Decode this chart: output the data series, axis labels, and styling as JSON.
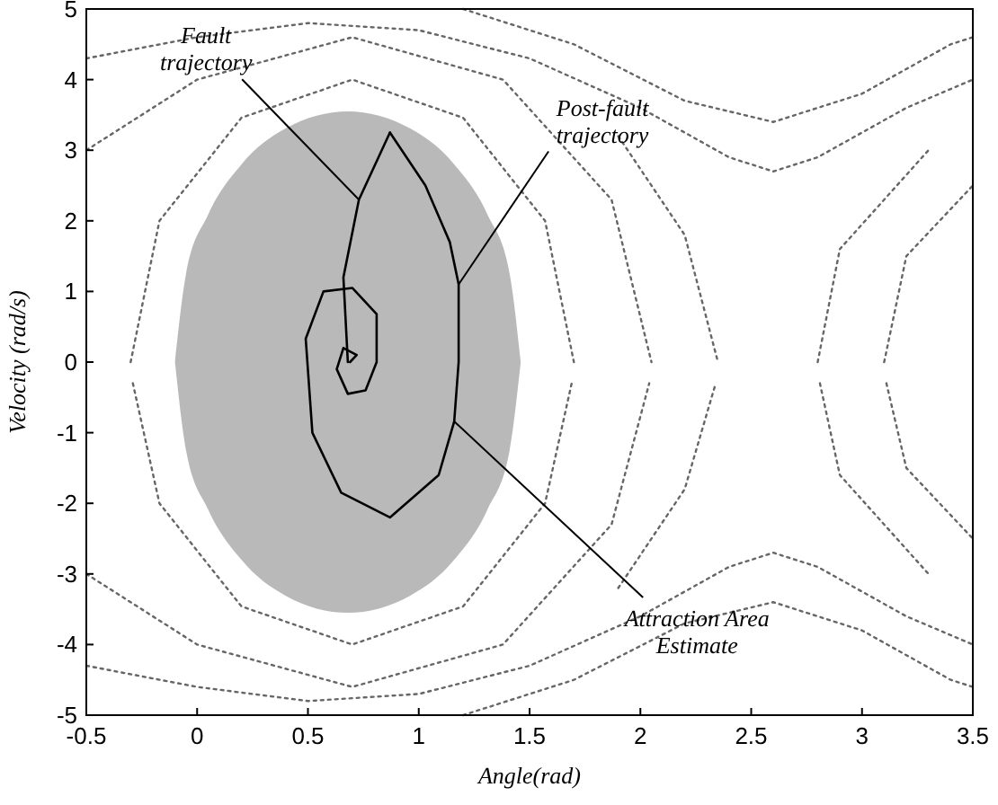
{
  "chart_data": {
    "type": "line",
    "xlabel": "Angle(rad)",
    "ylabel": "Velocity (rad/s)",
    "xlim": [
      -0.5,
      3.5
    ],
    "xticks": [
      -0.5,
      0,
      0.5,
      1,
      1.5,
      2,
      2.5,
      3,
      3.5
    ],
    "ylim": [
      -5,
      5
    ],
    "yticks": [
      -5,
      -4,
      -3,
      -2,
      -1,
      0,
      1,
      2,
      3,
      4,
      5
    ],
    "grid": false,
    "legend": false,
    "series": [
      {
        "type": "area",
        "color": "#a8a8a8",
        "x": [
          -0.1,
          -0.05,
          0.05,
          0.2,
          0.4,
          0.68,
          0.96,
          1.16,
          1.31,
          1.41,
          1.46
        ],
        "values": [
          0,
          1.25,
          2.09,
          2.8,
          3.31,
          3.55,
          3.31,
          2.8,
          2.09,
          1.25,
          0
        ]
      },
      {
        "type": "area",
        "color": "#a8a8a8",
        "x": [
          -0.1,
          -0.05,
          0.05,
          0.2,
          0.4,
          0.68,
          0.96,
          1.16,
          1.31,
          1.41,
          1.46
        ],
        "values": [
          0,
          -1.25,
          -2.09,
          -2.8,
          -3.31,
          -3.55,
          -3.31,
          -2.8,
          -2.09,
          -1.25,
          0
        ]
      },
      {
        "type": "line",
        "color": "#666666",
        "line_style": "dotted",
        "x": [
          -0.3,
          -0.17,
          0.2,
          0.7,
          1.2,
          1.57,
          1.7
        ],
        "values": [
          0,
          2,
          3.46,
          4,
          3.46,
          2,
          0
        ]
      },
      {
        "type": "line",
        "color": "#666666",
        "line_style": "dotted",
        "x": [
          -0.29,
          -0.17,
          0.2,
          0.7,
          1.2,
          1.57,
          1.69
        ],
        "values": [
          -0.3,
          -2,
          -3.46,
          -4,
          -3.46,
          -2,
          -0.3
        ]
      },
      {
        "type": "line",
        "color": "#666666",
        "line_style": "dotted",
        "x": [
          -0.5,
          0,
          0.7,
          1.38,
          1.87,
          2.05
        ],
        "values": [
          3,
          4,
          4.6,
          4,
          2.3,
          0
        ]
      },
      {
        "type": "line",
        "color": "#666666",
        "line_style": "dotted",
        "x": [
          -0.5,
          0,
          0.7,
          1.38,
          1.87,
          2.04
        ],
        "values": [
          -3,
          -4,
          -4.6,
          -4,
          -2.3,
          -0.3
        ]
      },
      {
        "type": "line",
        "color": "#666666",
        "line_style": "dotted",
        "x": [
          -0.5,
          0,
          0.5,
          1,
          1.5,
          2,
          2.4,
          2.6,
          2.8,
          3.2,
          3.5
        ],
        "values": [
          4.3,
          4.6,
          4.8,
          4.7,
          4.3,
          3.6,
          2.9,
          2.7,
          2.9,
          3.6,
          4
        ]
      },
      {
        "type": "line",
        "color": "#666666",
        "line_style": "dotted",
        "x": [
          1.2,
          1.7,
          2.2,
          2.6,
          3,
          3.4,
          3.5
        ],
        "values": [
          5,
          4.5,
          3.7,
          3.4,
          3.8,
          4.5,
          4.6
        ]
      },
      {
        "type": "line",
        "color": "#666666",
        "line_style": "dotted",
        "x": [
          -0.5,
          0,
          0.5,
          1,
          1.5,
          2,
          2.4,
          2.6,
          2.8,
          3.2,
          3.5
        ],
        "values": [
          -4.3,
          -4.6,
          -4.8,
          -4.7,
          -4.3,
          -3.6,
          -2.9,
          -2.7,
          -2.9,
          -3.6,
          -4
        ]
      },
      {
        "type": "line",
        "color": "#666666",
        "line_style": "dotted",
        "x": [
          1.2,
          1.7,
          2.2,
          2.6,
          3,
          3.4,
          3.5
        ],
        "values": [
          -5,
          -4.5,
          -3.7,
          -3.4,
          -3.8,
          -4.5,
          -4.6
        ]
      },
      {
        "type": "line",
        "color": "#666666",
        "line_style": "dotted",
        "x": [
          1.9,
          2.2,
          2.35
        ],
        "values": [
          3.2,
          1.8,
          0
        ]
      },
      {
        "type": "line",
        "color": "#666666",
        "line_style": "dotted",
        "x": [
          1.9,
          2.2,
          2.34
        ],
        "values": [
          -3.2,
          -1.8,
          -0.3
        ]
      },
      {
        "type": "line",
        "color": "#666666",
        "line_style": "dotted",
        "x": [
          2.8,
          2.9,
          3.3
        ],
        "values": [
          0,
          1.6,
          3
        ]
      },
      {
        "type": "line",
        "color": "#666666",
        "line_style": "dotted",
        "x": [
          2.81,
          2.9,
          3.3
        ],
        "values": [
          -0.3,
          -1.6,
          -3
        ]
      },
      {
        "type": "line",
        "color": "#666666",
        "line_style": "dotted",
        "x": [
          3.1,
          3.2,
          3.5
        ],
        "values": [
          0,
          1.5,
          2.5
        ]
      },
      {
        "type": "line",
        "color": "#666666",
        "line_style": "dotted",
        "x": [
          3.11,
          3.2,
          3.5
        ],
        "values": [
          -0.3,
          -1.5,
          -2.5
        ]
      },
      {
        "type": "line",
        "color": "#000000",
        "line_style": "solid",
        "x": [
          0.68,
          0.66,
          0.73,
          0.87
        ],
        "values": [
          0,
          1.2,
          2.3,
          3.25
        ]
      },
      {
        "type": "line",
        "color": "#000000",
        "line_style": "solid",
        "x": [
          0.87,
          1.03,
          1.14,
          1.18,
          1.18,
          1.16,
          1.09,
          0.87,
          0.65,
          0.52,
          0.49,
          0.57,
          0.7,
          0.81,
          0.81,
          0.76,
          0.68,
          0.63,
          0.66,
          0.72,
          0.69
        ],
        "values": [
          3.25,
          2.5,
          1.7,
          1.1,
          0,
          -0.84,
          -1.6,
          -2.2,
          -1.85,
          -1,
          0.33,
          1,
          1.05,
          0.68,
          0,
          -0.4,
          -0.45,
          -0.1,
          0.2,
          0.1,
          0
        ]
      }
    ],
    "annotations": [
      {
        "text": "Fault trajectory",
        "x": 0.73,
        "y": 2.3
      },
      {
        "text": "Post-fault trajectory",
        "x": 1.18,
        "y": 1.1
      },
      {
        "text": "Attraction Area Estimate",
        "x": 1.16,
        "y": -0.84
      }
    ]
  }
}
